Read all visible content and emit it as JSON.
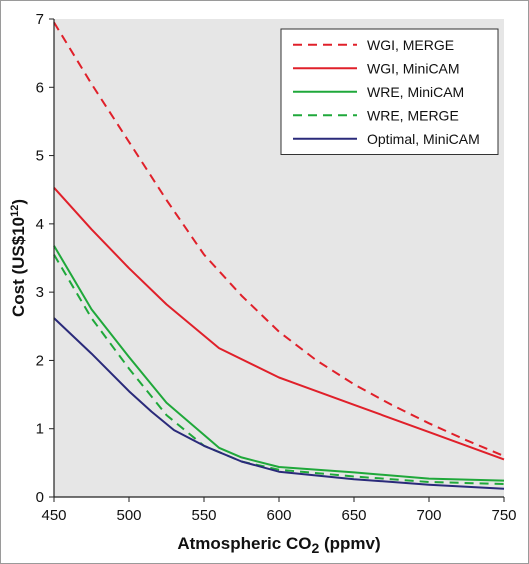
{
  "chart_data": {
    "type": "line",
    "title": "",
    "xlabel": "Atmospheric CO",
    "xlabel_sub": "2",
    "xlabel_suffix": " (ppmv)",
    "ylabel": "Cost (US$10",
    "ylabel_sup": "12",
    "ylabel_suffix": ")",
    "xlim": [
      450,
      750
    ],
    "ylim": [
      0,
      7
    ],
    "xticks": [
      450,
      500,
      550,
      600,
      650,
      700,
      750
    ],
    "yticks": [
      0,
      1,
      2,
      3,
      4,
      5,
      6,
      7
    ],
    "grid": false,
    "legend_position": "top-right",
    "plot_background": "#e6e6e6",
    "series": [
      {
        "name": "WGI, MERGE",
        "color": "#e0202a",
        "dash": "dashed",
        "x": [
          450,
          475,
          500,
          525,
          550,
          575,
          600,
          625,
          650,
          675,
          700,
          725,
          750
        ],
        "y": [
          6.95,
          6.05,
          5.2,
          4.35,
          3.55,
          2.95,
          2.42,
          2.0,
          1.65,
          1.35,
          1.08,
          0.83,
          0.6
        ]
      },
      {
        "name": "WGI, MiniCAM",
        "color": "#e0202a",
        "dash": "solid",
        "x": [
          450,
          475,
          500,
          525,
          560,
          600,
          650,
          700,
          750
        ],
        "y": [
          4.53,
          3.92,
          3.35,
          2.82,
          2.18,
          1.75,
          1.35,
          0.95,
          0.55
        ]
      },
      {
        "name": "WRE, MiniCAM",
        "color": "#1fa83a",
        "dash": "solid",
        "x": [
          450,
          475,
          500,
          525,
          560,
          575,
          600,
          650,
          700,
          750
        ],
        "y": [
          3.68,
          2.75,
          2.05,
          1.38,
          0.72,
          0.58,
          0.44,
          0.36,
          0.27,
          0.24
        ]
      },
      {
        "name": "WRE, MERGE",
        "color": "#1fa83a",
        "dash": "dashed",
        "x": [
          450,
          475,
          500,
          525,
          550,
          575,
          600,
          650,
          700,
          750
        ],
        "y": [
          3.55,
          2.62,
          1.88,
          1.2,
          0.75,
          0.52,
          0.4,
          0.3,
          0.22,
          0.19
        ]
      },
      {
        "name": "Optimal, MiniCAM",
        "color": "#2a2a7a",
        "dash": "solid",
        "x": [
          450,
          475,
          500,
          515,
          530,
          550,
          575,
          600,
          650,
          700,
          750
        ],
        "y": [
          2.62,
          2.1,
          1.55,
          1.25,
          0.98,
          0.75,
          0.52,
          0.37,
          0.26,
          0.18,
          0.12
        ]
      }
    ]
  }
}
